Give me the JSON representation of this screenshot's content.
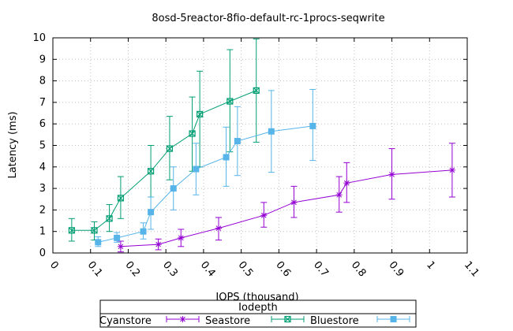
{
  "chart_data": {
    "type": "line",
    "title": "8osd-5reactor-8fio-default-rc-1procs-seqwrite",
    "xlabel": "IOPS (thousand)",
    "ylabel": "Latency (ms)",
    "xlim": [
      0,
      1.1
    ],
    "ylim": [
      0,
      10
    ],
    "xticks": [
      "0",
      "0.1",
      "0.2",
      "0.3",
      "0.4",
      "0.5",
      "0.6",
      "0.7",
      "0.8",
      "0.9",
      "1",
      "1.1"
    ],
    "yticks": [
      "0",
      "1",
      "2",
      "3",
      "4",
      "5",
      "6",
      "7",
      "8",
      "9",
      "10"
    ],
    "grid": true,
    "error_bars": true,
    "legend": {
      "title": "Iodepth",
      "placement": "bottom-center",
      "entries": [
        "Cyanstore",
        "Seastore",
        "Bluestore"
      ]
    },
    "series": [
      {
        "name": "Seastore",
        "color": "#9400d3",
        "marker": "star",
        "x": [
          0.18,
          0.28,
          0.34,
          0.44,
          0.56,
          0.64,
          0.76,
          0.78,
          0.9,
          1.06
        ],
        "y": [
          0.3,
          0.4,
          0.7,
          1.15,
          1.75,
          2.35,
          2.7,
          3.25,
          3.65,
          3.85
        ],
        "yerr_low": [
          0.05,
          0.15,
          0.3,
          0.6,
          1.2,
          1.65,
          1.9,
          2.35,
          2.5,
          2.6
        ],
        "yerr_high": [
          0.55,
          0.65,
          1.1,
          1.65,
          2.35,
          3.1,
          3.55,
          4.2,
          4.85,
          5.1
        ]
      },
      {
        "name": "Bluestore",
        "color": "#009e73",
        "marker": "boxed-x",
        "x": [
          0.05,
          0.11,
          0.15,
          0.18,
          0.26,
          0.31,
          0.37,
          0.39,
          0.47,
          0.54
        ],
        "y": [
          1.05,
          1.05,
          1.6,
          2.55,
          3.8,
          4.85,
          5.55,
          6.45,
          7.05,
          7.55
        ],
        "yerr_low": [
          0.55,
          0.6,
          1.0,
          1.6,
          2.6,
          3.4,
          3.8,
          4.0,
          4.7,
          5.15
        ],
        "yerr_high": [
          1.6,
          1.45,
          2.25,
          3.55,
          5.0,
          6.35,
          7.25,
          8.45,
          9.45,
          9.95
        ]
      },
      {
        "name": "Cyanstore",
        "color": "#56b4e9",
        "marker": "square",
        "x": [
          0.12,
          0.17,
          0.24,
          0.26,
          0.32,
          0.38,
          0.46,
          0.49,
          0.58,
          0.69
        ],
        "y": [
          0.5,
          0.7,
          1.0,
          1.9,
          3.0,
          3.9,
          4.45,
          5.2,
          5.65,
          5.9
        ],
        "yerr_low": [
          0.3,
          0.5,
          0.65,
          1.1,
          2.0,
          2.7,
          3.1,
          3.6,
          3.75,
          4.3
        ],
        "yerr_high": [
          0.75,
          0.95,
          1.4,
          2.6,
          4.0,
          5.1,
          5.85,
          6.8,
          7.55,
          7.6
        ]
      }
    ]
  }
}
